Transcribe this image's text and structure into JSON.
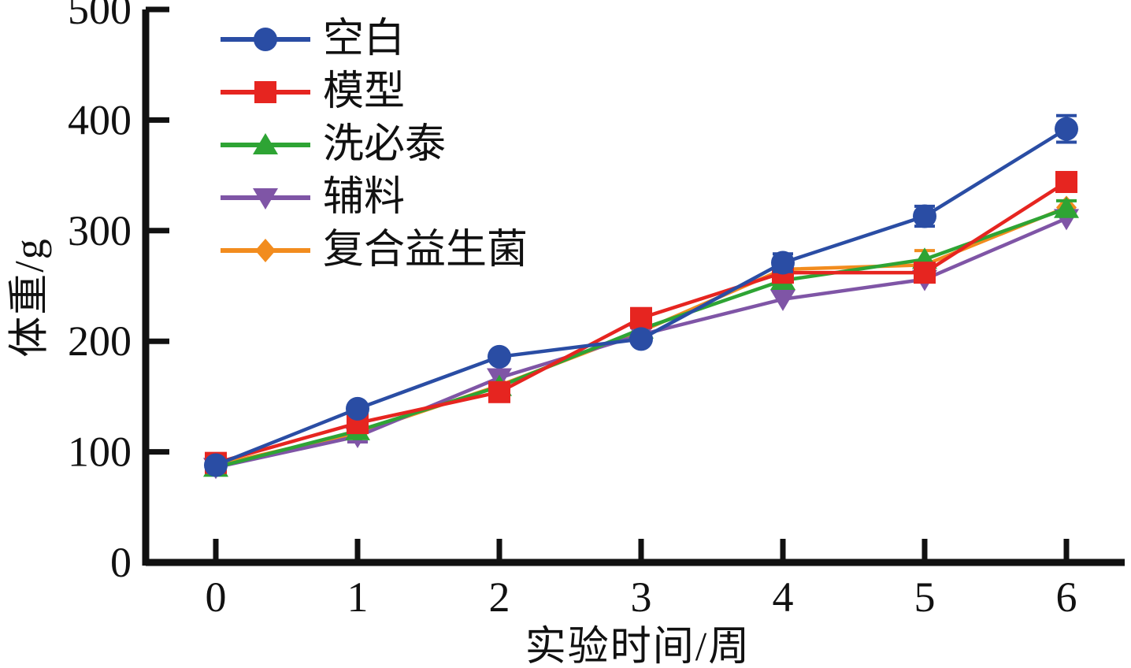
{
  "chart_data": {
    "type": "line",
    "title": "",
    "xlabel": "实验时间/周",
    "ylabel": "体重/g",
    "x": [
      0,
      1,
      2,
      3,
      4,
      5,
      6
    ],
    "xticks": [
      0,
      1,
      2,
      3,
      4,
      5,
      6
    ],
    "yticks": [
      0,
      100,
      200,
      300,
      400,
      500
    ],
    "ylim": [
      0,
      500
    ],
    "xlim": [
      0,
      6
    ],
    "grid": false,
    "legend_position": "top-left-inside",
    "axis_color": "#111111",
    "series": [
      {
        "name": "空白",
        "marker": "circle",
        "color": "#2a4da4",
        "values": [
          88,
          139,
          186,
          202,
          271,
          313,
          392
        ],
        "errors": [
          0,
          0,
          0,
          0,
          8,
          9,
          12
        ]
      },
      {
        "name": "模型",
        "marker": "square",
        "color": "#e62520",
        "values": [
          90,
          126,
          154,
          221,
          262,
          262,
          344
        ],
        "errors": [
          0,
          0,
          0,
          0,
          0,
          0,
          0
        ]
      },
      {
        "name": "洗必泰",
        "marker": "triangle-up",
        "color": "#2ea434",
        "values": [
          86,
          119,
          159,
          211,
          255,
          274,
          320
        ],
        "errors": [
          0,
          0,
          0,
          0,
          0,
          0,
          7
        ]
      },
      {
        "name": "辅料",
        "marker": "triangle-down",
        "color": "#7f55a6",
        "values": [
          86,
          114,
          167,
          206,
          238,
          256,
          311
        ],
        "errors": [
          0,
          5,
          0,
          0,
          0,
          0,
          0
        ]
      },
      {
        "name": "复合益生菌",
        "marker": "diamond",
        "color": "#f28c1e",
        "values": [
          88,
          117,
          160,
          209,
          265,
          269,
          321
        ],
        "errors": [
          0,
          0,
          0,
          0,
          0,
          13,
          0
        ]
      }
    ]
  }
}
